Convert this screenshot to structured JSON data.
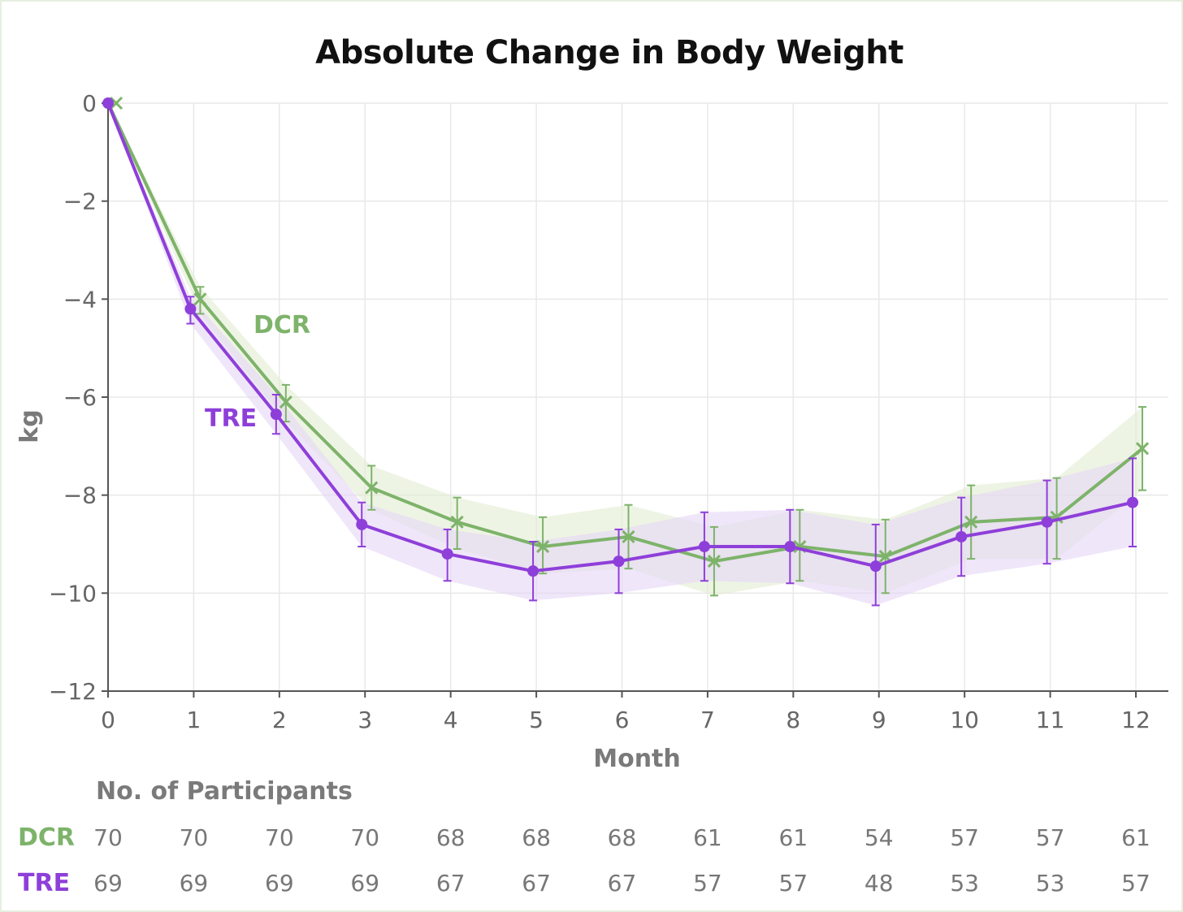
{
  "colors": {
    "dcr": "#7db36a",
    "tre": "#8e3fd9",
    "dcr_band": "#e3edd2",
    "tre_band": "#e6d6f6"
  },
  "chart_data": {
    "type": "line",
    "title": "Absolute Change in Body Weight",
    "xlabel": "Month",
    "ylabel": "kg",
    "xlim": [
      0,
      12
    ],
    "ylim": [
      -12,
      0
    ],
    "xticks": [
      "0",
      "1",
      "2",
      "3",
      "4",
      "5",
      "6",
      "7",
      "8",
      "9",
      "10",
      "11",
      "12"
    ],
    "yticks": [
      {
        "value": 0,
        "label": "0"
      },
      {
        "value": -2,
        "label": "−2"
      },
      {
        "value": -4,
        "label": "−4"
      },
      {
        "value": -6,
        "label": "−6"
      },
      {
        "value": -8,
        "label": "−8"
      },
      {
        "value": -10,
        "label": "−10"
      },
      {
        "value": -12,
        "label": "−12"
      }
    ],
    "grid": true,
    "series": [
      {
        "name": "DCR",
        "marker": "x",
        "x": [
          0,
          1,
          2,
          3,
          4,
          5,
          6,
          7,
          8,
          9,
          10,
          11,
          12
        ],
        "values": [
          0,
          -4.0,
          -6.1,
          -7.85,
          -8.55,
          -9.05,
          -8.85,
          -9.35,
          -9.05,
          -9.25,
          -8.55,
          -8.45,
          -7.05
        ],
        "ci_low": [
          0,
          -4.3,
          -6.5,
          -8.3,
          -9.1,
          -9.6,
          -9.5,
          -10.05,
          -9.75,
          -10.0,
          -9.3,
          -9.3,
          -7.9
        ],
        "ci_high": [
          0,
          -3.75,
          -5.75,
          -7.4,
          -8.05,
          -8.45,
          -8.2,
          -8.65,
          -8.3,
          -8.5,
          -7.8,
          -7.65,
          -6.2
        ]
      },
      {
        "name": "TRE",
        "marker": "dot",
        "x": [
          0,
          1,
          2,
          3,
          4,
          5,
          6,
          7,
          8,
          9,
          10,
          11,
          12
        ],
        "values": [
          0,
          -4.2,
          -6.35,
          -8.6,
          -9.2,
          -9.55,
          -9.35,
          -9.05,
          -9.05,
          -9.45,
          -8.85,
          -8.55,
          -8.15
        ],
        "ci_low": [
          0,
          -4.5,
          -6.75,
          -9.05,
          -9.75,
          -10.15,
          -10.0,
          -9.75,
          -9.8,
          -10.25,
          -9.65,
          -9.4,
          -9.05
        ],
        "ci_high": [
          0,
          -3.95,
          -5.95,
          -8.15,
          -8.7,
          -8.95,
          -8.7,
          -8.35,
          -8.3,
          -8.6,
          -8.05,
          -7.7,
          -7.25
        ]
      }
    ],
    "participants": {
      "heading": "No. of Participants",
      "rows": [
        {
          "name": "DCR",
          "counts": [
            "70",
            "70",
            "70",
            "70",
            "68",
            "68",
            "68",
            "61",
            "61",
            "54",
            "57",
            "57",
            "61"
          ]
        },
        {
          "name": "TRE",
          "counts": [
            "69",
            "69",
            "69",
            "69",
            "67",
            "67",
            "67",
            "57",
            "57",
            "48",
            "53",
            "53",
            "57"
          ]
        }
      ]
    }
  }
}
